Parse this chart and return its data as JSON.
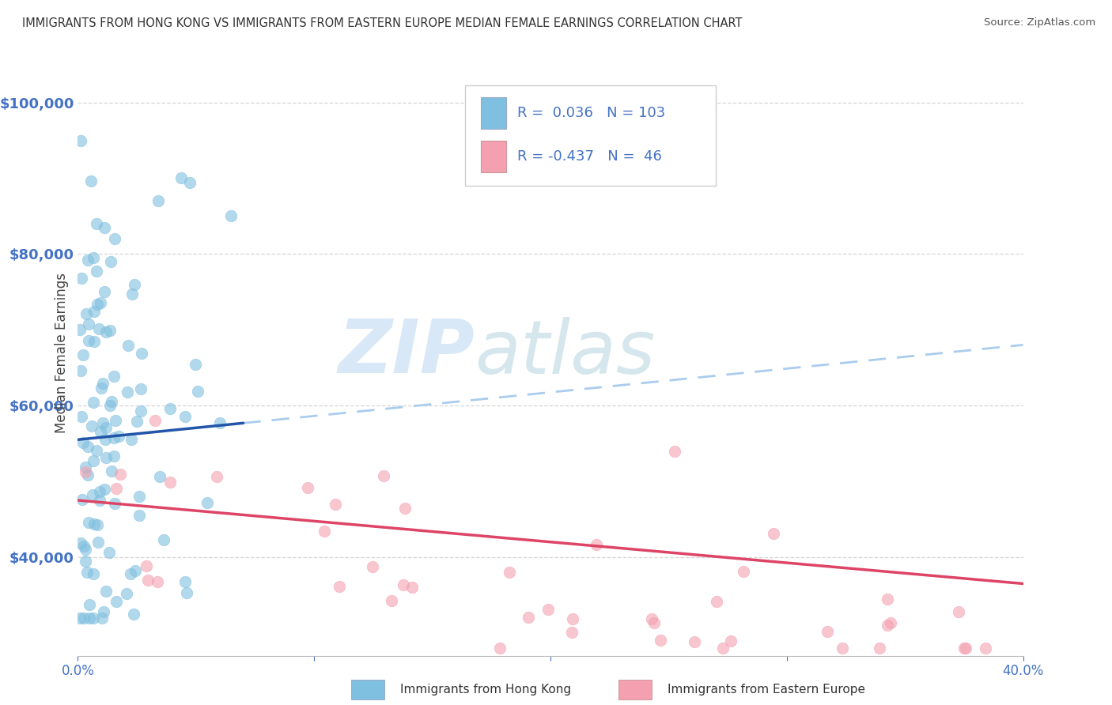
{
  "title": "IMMIGRANTS FROM HONG KONG VS IMMIGRANTS FROM EASTERN EUROPE MEDIAN FEMALE EARNINGS CORRELATION CHART",
  "source_text": "Source: ZipAtlas.com",
  "watermark_zip": "ZIP",
  "watermark_atlas": "atlas",
  "xlabel": "",
  "ylabel": "Median Female Earnings",
  "xlim": [
    0.0,
    0.4
  ],
  "ylim": [
    27000,
    107000
  ],
  "yticks": [
    40000,
    60000,
    80000,
    100000
  ],
  "ytick_labels": [
    "$40,000",
    "$60,000",
    "$80,000",
    "$100,000"
  ],
  "xtick_positions": [
    0.0,
    0.1,
    0.2,
    0.3,
    0.4
  ],
  "series1_color": "#7fbfdf",
  "series2_color": "#f4a0b0",
  "trend1_solid_color": "#2255aa",
  "trend1_dash_color": "#aaccee",
  "trend2_color": "#dd4466",
  "R1": 0.036,
  "N1": 103,
  "R2": -0.437,
  "N2": 46,
  "legend_label1": "Immigrants from Hong Kong",
  "legend_label2": "Immigrants from Eastern Europe",
  "title_color": "#333333",
  "axis_color": "#4472C4",
  "grid_color": "#cccccc",
  "background_color": "#ffffff",
  "trend1_x0": 0.0,
  "trend1_x1": 0.4,
  "trend1_y0": 55500,
  "trend1_y1": 68000,
  "trend1_solid_x1": 0.07,
  "trend2_x0": 0.0,
  "trend2_x1": 0.4,
  "trend2_y0": 47500,
  "trend2_y1": 36500
}
